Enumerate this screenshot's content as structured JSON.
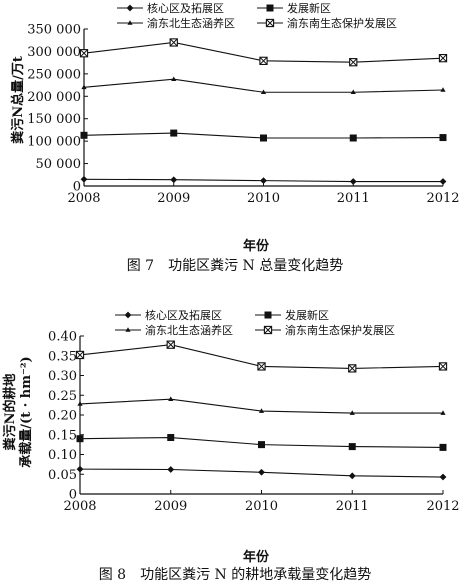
{
  "chart_data": [
    {
      "type": "line",
      "caption": "图 7　功能区粪污 N 总量变化趋势",
      "xlabel": "年份",
      "ylabel": "粪污N总量/万t",
      "x": [
        "2008",
        "2009",
        "2010",
        "2011",
        "2012"
      ],
      "ylim": [
        0,
        350000
      ],
      "yticks": [
        "0",
        "50 000",
        "100 000",
        "150 000",
        "200 000",
        "250 000",
        "300 000",
        "350 000"
      ],
      "legend_placement": "top",
      "series": [
        {
          "name": "核心区及拓展区",
          "marker": "diamond",
          "values": [
            15000,
            14000,
            12000,
            10000,
            10000
          ]
        },
        {
          "name": "发展新区",
          "marker": "square",
          "values": [
            113000,
            118000,
            107000,
            107000,
            108000
          ]
        },
        {
          "name": "渝东北生态涵养区",
          "marker": "triangle",
          "values": [
            220000,
            238000,
            209000,
            209000,
            214000
          ]
        },
        {
          "name": "渝东南生态保护发展区",
          "marker": "xsquare",
          "values": [
            296000,
            320000,
            279000,
            276000,
            285000
          ]
        }
      ]
    },
    {
      "type": "line",
      "caption": "图 8　功能区粪污 N 的耕地承载量变化趋势",
      "xlabel": "年份",
      "ylabel_line1": "粪污N的耕地",
      "ylabel_line2": "承载量/(t · hm⁻²)",
      "x": [
        "2008",
        "2009",
        "2010",
        "2011",
        "2012"
      ],
      "ylim": [
        0,
        0.4
      ],
      "yticks": [
        "0",
        "0.05",
        "0.10",
        "0.15",
        "0.20",
        "0.25",
        "0.30",
        "0.35",
        "0.40"
      ],
      "legend_placement": "top",
      "series": [
        {
          "name": "核心区及拓展区",
          "marker": "diamond",
          "values": [
            0.063,
            0.062,
            0.055,
            0.046,
            0.043
          ]
        },
        {
          "name": "发展新区",
          "marker": "square",
          "values": [
            0.14,
            0.143,
            0.125,
            0.12,
            0.118
          ]
        },
        {
          "name": "渝东北生态涵养区",
          "marker": "triangle",
          "values": [
            0.228,
            0.24,
            0.21,
            0.205,
            0.205
          ]
        },
        {
          "name": "渝东南生态保护发展区",
          "marker": "xsquare",
          "values": [
            0.352,
            0.378,
            0.323,
            0.318,
            0.323
          ]
        }
      ]
    }
  ]
}
